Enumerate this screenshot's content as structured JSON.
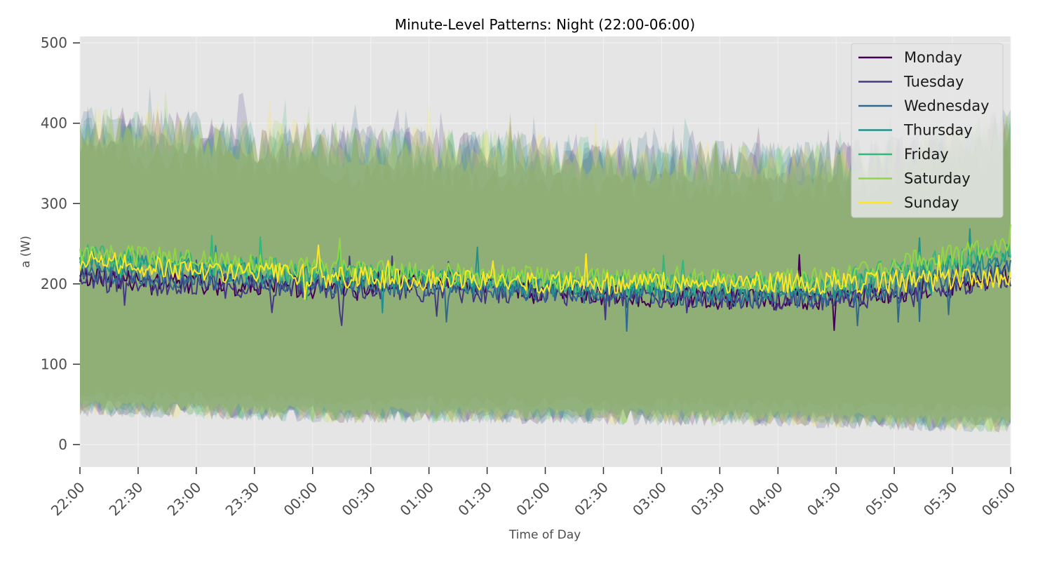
{
  "chart_data": {
    "type": "line",
    "title": "Minute-Level Patterns: Night (22:00-06:00)",
    "xlabel": "Time of Day",
    "ylabel": "a (W)",
    "x_start": "22:00",
    "x_end": "06:00",
    "xticks": [
      "22:00",
      "22:30",
      "23:00",
      "23:30",
      "00:00",
      "00:30",
      "01:00",
      "01:30",
      "02:00",
      "02:30",
      "03:00",
      "03:30",
      "04:00",
      "04:30",
      "05:00",
      "05:30",
      "06:00"
    ],
    "ylim": [
      -28,
      508
    ],
    "yticks": [
      0,
      100,
      200,
      300,
      400,
      500
    ],
    "grid": true,
    "legend_position": "top-right",
    "bands": {
      "opacity": 0.28,
      "description_free": true,
      "upper": [
        {
          "time": "22:00",
          "value": 395
        },
        {
          "time": "23:00",
          "value": 385
        },
        {
          "time": "00:00",
          "value": 372
        },
        {
          "time": "01:00",
          "value": 368
        },
        {
          "time": "02:00",
          "value": 360
        },
        {
          "time": "03:00",
          "value": 352
        },
        {
          "time": "04:00",
          "value": 348
        },
        {
          "time": "05:00",
          "value": 355
        },
        {
          "time": "06:00",
          "value": 390
        }
      ],
      "lower": [
        {
          "time": "22:00",
          "value": 45
        },
        {
          "time": "23:00",
          "value": 42
        },
        {
          "time": "00:00",
          "value": 38
        },
        {
          "time": "01:00",
          "value": 36
        },
        {
          "time": "02:00",
          "value": 36
        },
        {
          "time": "03:00",
          "value": 34
        },
        {
          "time": "04:00",
          "value": 33
        },
        {
          "time": "05:00",
          "value": 28
        },
        {
          "time": "06:00",
          "value": 25
        }
      ]
    },
    "series": [
      {
        "name": "Monday",
        "color": "#440154",
        "points": [
          {
            "time": "22:00",
            "value": 210
          },
          {
            "time": "22:30",
            "value": 204
          },
          {
            "time": "23:00",
            "value": 201
          },
          {
            "time": "23:30",
            "value": 198
          },
          {
            "time": "00:00",
            "value": 197
          },
          {
            "time": "00:30",
            "value": 200
          },
          {
            "time": "01:00",
            "value": 205
          },
          {
            "time": "01:30",
            "value": 199
          },
          {
            "time": "02:00",
            "value": 192
          },
          {
            "time": "02:30",
            "value": 188
          },
          {
            "time": "03:00",
            "value": 184
          },
          {
            "time": "03:30",
            "value": 182
          },
          {
            "time": "04:00",
            "value": 181
          },
          {
            "time": "04:30",
            "value": 182
          },
          {
            "time": "05:00",
            "value": 190
          },
          {
            "time": "05:30",
            "value": 199
          },
          {
            "time": "06:00",
            "value": 213
          }
        ]
      },
      {
        "name": "Tuesday",
        "color": "#443983",
        "points": [
          {
            "time": "22:00",
            "value": 205
          },
          {
            "time": "22:30",
            "value": 200
          },
          {
            "time": "23:00",
            "value": 197
          },
          {
            "time": "23:30",
            "value": 195
          },
          {
            "time": "00:00",
            "value": 193
          },
          {
            "time": "00:30",
            "value": 192
          },
          {
            "time": "01:00",
            "value": 191
          },
          {
            "time": "01:30",
            "value": 190
          },
          {
            "time": "02:00",
            "value": 187
          },
          {
            "time": "02:30",
            "value": 185
          },
          {
            "time": "03:00",
            "value": 183
          },
          {
            "time": "03:30",
            "value": 182
          },
          {
            "time": "04:00",
            "value": 181
          },
          {
            "time": "04:30",
            "value": 180
          },
          {
            "time": "05:00",
            "value": 186
          },
          {
            "time": "05:30",
            "value": 197
          },
          {
            "time": "06:00",
            "value": 208
          }
        ]
      },
      {
        "name": "Wednesday",
        "color": "#31688e",
        "points": [
          {
            "time": "22:00",
            "value": 218
          },
          {
            "time": "22:30",
            "value": 211
          },
          {
            "time": "23:00",
            "value": 207
          },
          {
            "time": "23:30",
            "value": 204
          },
          {
            "time": "00:00",
            "value": 201
          },
          {
            "time": "00:30",
            "value": 199
          },
          {
            "time": "01:00",
            "value": 196
          },
          {
            "time": "01:30",
            "value": 194
          },
          {
            "time": "02:00",
            "value": 191
          },
          {
            "time": "02:30",
            "value": 189
          },
          {
            "time": "03:00",
            "value": 187
          },
          {
            "time": "03:30",
            "value": 185
          },
          {
            "time": "04:00",
            "value": 184
          },
          {
            "time": "04:30",
            "value": 185
          },
          {
            "time": "05:00",
            "value": 196
          },
          {
            "time": "05:30",
            "value": 207
          },
          {
            "time": "06:00",
            "value": 222
          }
        ]
      },
      {
        "name": "Thursday",
        "color": "#21918c",
        "points": [
          {
            "time": "22:00",
            "value": 228
          },
          {
            "time": "22:30",
            "value": 222
          },
          {
            "time": "23:00",
            "value": 218
          },
          {
            "time": "23:30",
            "value": 213
          },
          {
            "time": "00:00",
            "value": 209
          },
          {
            "time": "00:30",
            "value": 206
          },
          {
            "time": "01:00",
            "value": 203
          },
          {
            "time": "01:30",
            "value": 200
          },
          {
            "time": "02:00",
            "value": 198
          },
          {
            "time": "02:30",
            "value": 196
          },
          {
            "time": "03:00",
            "value": 194
          },
          {
            "time": "03:30",
            "value": 193
          },
          {
            "time": "04:00",
            "value": 193
          },
          {
            "time": "04:30",
            "value": 195
          },
          {
            "time": "05:00",
            "value": 210
          },
          {
            "time": "05:30",
            "value": 224
          },
          {
            "time": "06:00",
            "value": 236
          }
        ]
      },
      {
        "name": "Friday",
        "color": "#35b779",
        "points": [
          {
            "time": "22:00",
            "value": 236
          },
          {
            "time": "22:30",
            "value": 229
          },
          {
            "time": "23:00",
            "value": 225
          },
          {
            "time": "23:30",
            "value": 220
          },
          {
            "time": "00:00",
            "value": 215
          },
          {
            "time": "00:30",
            "value": 212
          },
          {
            "time": "01:00",
            "value": 210
          },
          {
            "time": "01:30",
            "value": 207
          },
          {
            "time": "02:00",
            "value": 204
          },
          {
            "time": "02:30",
            "value": 203
          },
          {
            "time": "03:00",
            "value": 202
          },
          {
            "time": "03:30",
            "value": 201
          },
          {
            "time": "04:00",
            "value": 201
          },
          {
            "time": "04:30",
            "value": 203
          },
          {
            "time": "05:00",
            "value": 220
          },
          {
            "time": "05:30",
            "value": 232
          },
          {
            "time": "06:00",
            "value": 243
          }
        ]
      },
      {
        "name": "Saturday",
        "color": "#90d743",
        "points": [
          {
            "time": "22:00",
            "value": 240
          },
          {
            "time": "22:30",
            "value": 234
          },
          {
            "time": "23:00",
            "value": 229
          },
          {
            "time": "23:30",
            "value": 224
          },
          {
            "time": "00:00",
            "value": 219
          },
          {
            "time": "00:30",
            "value": 215
          },
          {
            "time": "01:00",
            "value": 213
          },
          {
            "time": "01:30",
            "value": 210
          },
          {
            "time": "02:00",
            "value": 208
          },
          {
            "time": "02:30",
            "value": 207
          },
          {
            "time": "03:00",
            "value": 206
          },
          {
            "time": "03:30",
            "value": 205
          },
          {
            "time": "04:00",
            "value": 205
          },
          {
            "time": "04:30",
            "value": 208
          },
          {
            "time": "05:00",
            "value": 224
          },
          {
            "time": "05:30",
            "value": 236
          },
          {
            "time": "06:00",
            "value": 246
          }
        ]
      },
      {
        "name": "Sunday",
        "color": "#fde725",
        "points": [
          {
            "time": "22:00",
            "value": 228
          },
          {
            "time": "22:30",
            "value": 222
          },
          {
            "time": "23:00",
            "value": 218
          },
          {
            "time": "23:30",
            "value": 213
          },
          {
            "time": "00:00",
            "value": 210
          },
          {
            "time": "00:30",
            "value": 207
          },
          {
            "time": "01:00",
            "value": 205
          },
          {
            "time": "01:30",
            "value": 203
          },
          {
            "time": "02:00",
            "value": 202
          },
          {
            "time": "02:30",
            "value": 201
          },
          {
            "time": "03:00",
            "value": 201
          },
          {
            "time": "03:30",
            "value": 201
          },
          {
            "time": "04:00",
            "value": 201
          },
          {
            "time": "04:30",
            "value": 201
          },
          {
            "time": "05:00",
            "value": 203
          },
          {
            "time": "05:30",
            "value": 206
          },
          {
            "time": "06:00",
            "value": 210
          }
        ]
      }
    ]
  }
}
